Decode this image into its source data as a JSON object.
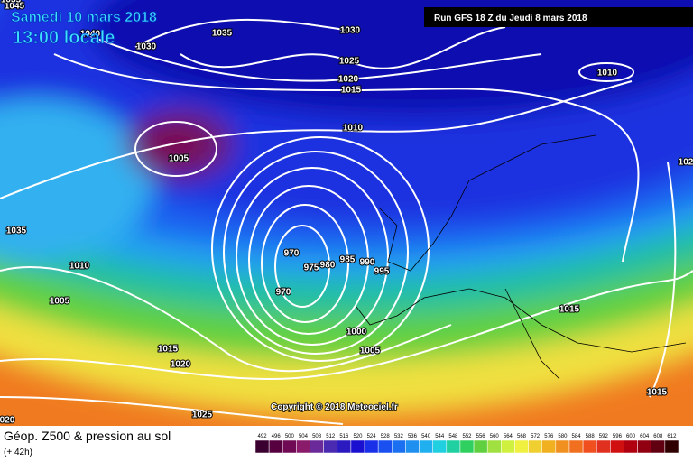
{
  "header": {
    "date": "Samedi 10 mars 2018",
    "time": "13:00 locale",
    "run": "Run GFS 18 Z du Jeudi 8 mars 2018"
  },
  "copyright": "Copyright © 2018 Meteociel.fr",
  "footer": {
    "title": "Géop. Z500 & pression au sol",
    "lead": "(+ 42h)"
  },
  "isobar_labels": [
    "1045",
    "1035",
    "1040",
    "1035",
    "1030",
    "1030",
    "1025",
    "1020",
    "1015",
    "1010",
    "1010",
    "1005",
    "102",
    "1035",
    "1010",
    "1005",
    "970",
    "975",
    "980",
    "985",
    "990",
    "995",
    "970",
    "1000",
    "1005",
    "1015",
    "1015",
    "1020",
    "1025",
    "1015",
    "020"
  ],
  "colorbar": {
    "labels": [
      "492",
      "496",
      "500",
      "504",
      "508",
      "512",
      "516",
      "520",
      "524",
      "528",
      "532",
      "536",
      "540",
      "544",
      "548",
      "552",
      "556",
      "560",
      "564",
      "568",
      "572",
      "576",
      "580",
      "584",
      "588",
      "592",
      "596",
      "600",
      "604",
      "608",
      "612"
    ],
    "colors": [
      "#3a0030",
      "#560040",
      "#700a55",
      "#8a1a6a",
      "#6a2a9a",
      "#4a2ab0",
      "#2a1ac0",
      "#1a10d0",
      "#1a30e8",
      "#1a50f0",
      "#1a70f0",
      "#2090f0",
      "#20b0f0",
      "#20d0e0",
      "#20d0a0",
      "#30d060",
      "#60d040",
      "#a0e040",
      "#d0f040",
      "#f0f040",
      "#f0d030",
      "#f0b020",
      "#f09020",
      "#f07020",
      "#f05020",
      "#e03020",
      "#d01010",
      "#b00010",
      "#900010",
      "#600010",
      "#300000"
    ]
  }
}
